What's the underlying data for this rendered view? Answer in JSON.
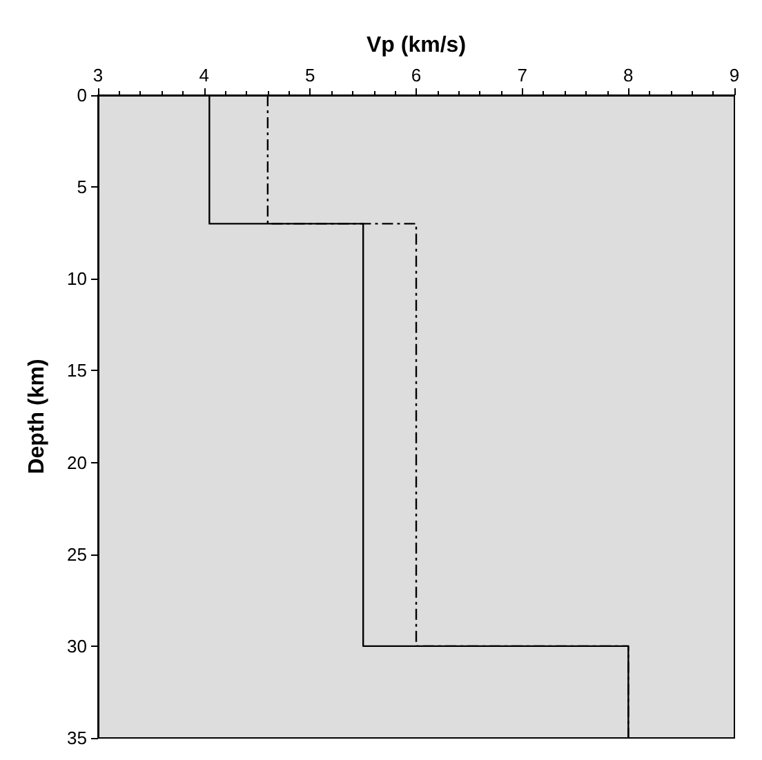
{
  "chart_data": {
    "type": "line",
    "xlabel": "Vp (km/s)",
    "ylabel": "Depth (km)",
    "xlim": [
      3,
      9
    ],
    "xticks": [
      3,
      4,
      5,
      6,
      7,
      8,
      9
    ],
    "ylim": [
      35,
      0
    ],
    "yticks": [
      0,
      5,
      10,
      15,
      20,
      25,
      30,
      35
    ],
    "grid": false,
    "series": [
      {
        "color": "#000000",
        "line_style": "solid",
        "x": [
          4.05,
          4.05,
          5.5,
          5.5,
          8,
          8
        ],
        "values": [
          0,
          7,
          7,
          30,
          30,
          35
        ]
      },
      {
        "color": "#000000",
        "line_style": "dashed",
        "x": [
          4.6,
          4.6,
          6,
          6,
          8,
          8
        ],
        "values": [
          0,
          7,
          7,
          30,
          30,
          35
        ]
      }
    ]
  }
}
